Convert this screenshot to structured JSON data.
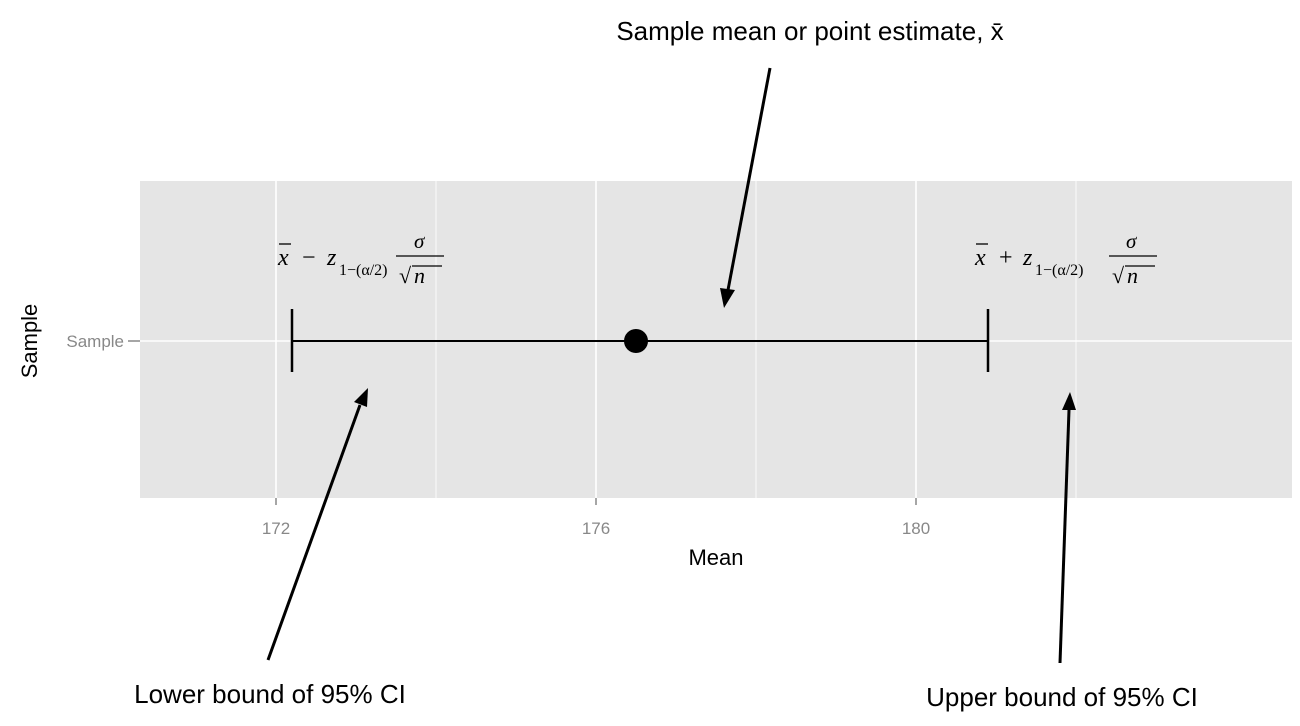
{
  "chart_data": {
    "type": "errorbar",
    "xlabel": "Mean",
    "ylabel": "Sample",
    "categories": [
      "Sample"
    ],
    "xlim": [
      170.3,
      184.7
    ],
    "xticks": [
      172,
      176,
      180
    ],
    "grid": true,
    "point": {
      "category": "Sample",
      "mean": 176.5,
      "lower": 172.2,
      "upper": 180.9
    },
    "annotations": {
      "mean": "Sample mean or point estimate, x̄",
      "lower": "Lower bound of 95% CI",
      "upper": "Upper bound of 95% CI"
    },
    "formulas": {
      "lower": "x̄ − z1−(α/2) σ/√n",
      "upper": "x̄ + z1−(α/2) σ/√n"
    }
  },
  "colors": {
    "panel": "#e5e5e5",
    "grid": "#ffffff",
    "mark": "#000000",
    "tick_text": "#888888"
  }
}
